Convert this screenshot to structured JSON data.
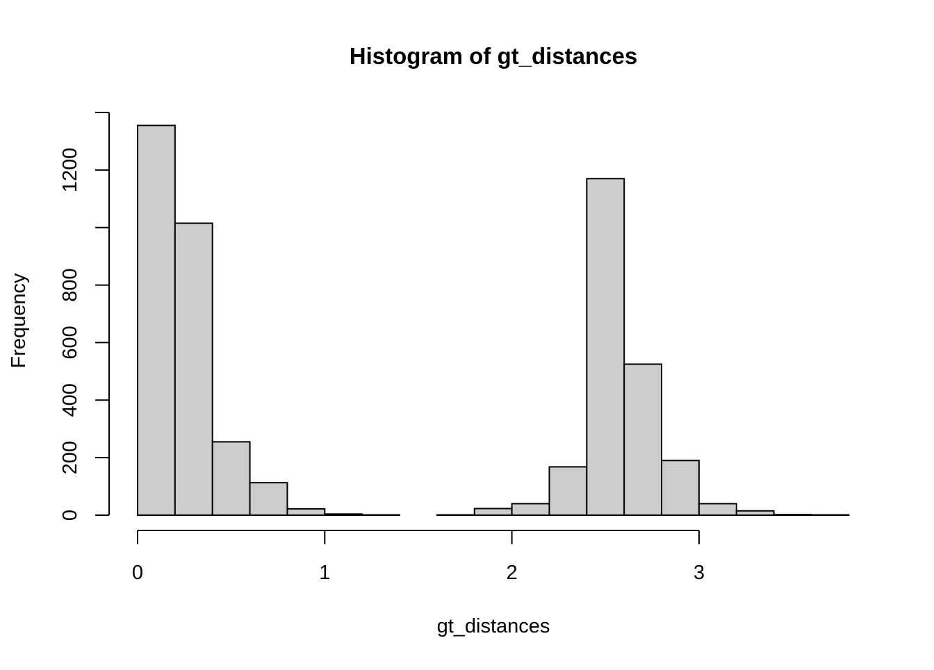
{
  "chart_data": {
    "type": "bar",
    "title": "Histogram of gt_distances",
    "xlabel": "gt_distances",
    "ylabel": "Frequency",
    "bin_edges": [
      0,
      0.2,
      0.4,
      0.6,
      0.8,
      1.0,
      1.2,
      1.4,
      1.6,
      1.8,
      2.0,
      2.2,
      2.4,
      2.6,
      2.8,
      3.0,
      3.2,
      3.4,
      3.6,
      3.8
    ],
    "values": [
      1355,
      1015,
      255,
      113,
      22,
      4,
      1,
      0,
      1,
      23,
      40,
      168,
      1170,
      525,
      190,
      40,
      15,
      2,
      1
    ],
    "xlim": [
      0,
      3.8
    ],
    "ylim": [
      0,
      1400
    ],
    "x_ticks": [
      0,
      1,
      2,
      3
    ],
    "x_tick_labels": [
      "0",
      "1",
      "2",
      "3"
    ],
    "y_ticks": [
      0,
      200,
      400,
      600,
      800,
      1000,
      1200,
      1400
    ],
    "y_tick_labels": [
      "0",
      "200",
      "400",
      "600",
      "800",
      "",
      "1200",
      ""
    ],
    "bar_fill": "#cccccc",
    "bar_stroke": "#000000",
    "grid": false
  }
}
